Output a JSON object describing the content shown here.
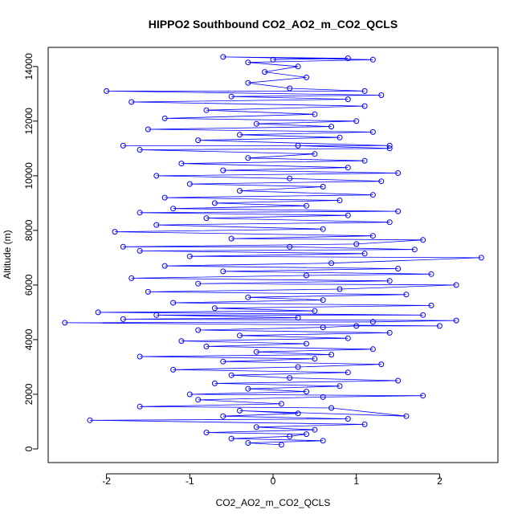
{
  "chart_data": {
    "type": "scatter",
    "title": "HIPPO2 Southbound CO2_AO2_m_CO2_QCLS",
    "xlabel": "CO2_AO2_m_CO2_QCLS",
    "ylabel": "Altitude (m)",
    "xlim": [
      -2.7,
      2.7
    ],
    "ylim": [
      -500,
      14700
    ],
    "x_ticks": [
      -2,
      -1,
      0,
      1,
      2
    ],
    "y_ticks": [
      0,
      2000,
      4000,
      6000,
      8000,
      10000,
      12000,
      14000
    ],
    "x_tick_labels": [
      "-2",
      "-1",
      "0",
      "1",
      "2"
    ],
    "y_tick_labels": [
      "0",
      "2000",
      "4000",
      "6000",
      "8000",
      "10000",
      "12000",
      "14000"
    ],
    "series": [
      {
        "color": "#0000ff",
        "marker": "open-circle",
        "connected": true,
        "points": [
          [
            0.1,
            150
          ],
          [
            -0.3,
            220
          ],
          [
            0.6,
            300
          ],
          [
            -0.5,
            380
          ],
          [
            0.2,
            460
          ],
          [
            0.4,
            540
          ],
          [
            -0.8,
            600
          ],
          [
            0.5,
            700
          ],
          [
            -0.2,
            800
          ],
          [
            1.1,
            900
          ],
          [
            -2.2,
            1050
          ],
          [
            0.9,
            1100
          ],
          [
            -0.6,
            1200
          ],
          [
            0.3,
            1300
          ],
          [
            -0.4,
            1400
          ],
          [
            1.6,
            1200
          ],
          [
            0.7,
            1500
          ],
          [
            -1.6,
            1550
          ],
          [
            0.1,
            1650
          ],
          [
            -0.9,
            1800
          ],
          [
            0.6,
            1900
          ],
          [
            1.8,
            1950
          ],
          [
            -1.0,
            2000
          ],
          [
            0.4,
            2100
          ],
          [
            -0.3,
            2200
          ],
          [
            0.8,
            2300
          ],
          [
            -0.7,
            2400
          ],
          [
            1.5,
            2500
          ],
          [
            0.2,
            2600
          ],
          [
            -0.5,
            2700
          ],
          [
            0.9,
            2800
          ],
          [
            -1.2,
            2900
          ],
          [
            0.3,
            3000
          ],
          [
            1.3,
            3100
          ],
          [
            -0.6,
            3200
          ],
          [
            0.5,
            3300
          ],
          [
            -1.6,
            3380
          ],
          [
            0.7,
            3450
          ],
          [
            -0.2,
            3550
          ],
          [
            1.2,
            3650
          ],
          [
            -0.8,
            3750
          ],
          [
            0.4,
            3850
          ],
          [
            -1.1,
            3950
          ],
          [
            0.9,
            4050
          ],
          [
            -0.4,
            4150
          ],
          [
            1.4,
            4250
          ],
          [
            -0.9,
            4350
          ],
          [
            0.6,
            4450
          ],
          [
            1.0,
            4500
          ],
          [
            2.0,
            4500
          ],
          [
            -2.5,
            4620
          ],
          [
            1.2,
            4650
          ],
          [
            2.2,
            4700
          ],
          [
            -1.8,
            4750
          ],
          [
            0.3,
            4800
          ],
          [
            -1.4,
            4900
          ],
          [
            1.8,
            4900
          ],
          [
            -2.1,
            5000
          ],
          [
            0.5,
            5050
          ],
          [
            -0.7,
            5150
          ],
          [
            1.9,
            5250
          ],
          [
            -1.2,
            5350
          ],
          [
            0.6,
            5450
          ],
          [
            -0.3,
            5550
          ],
          [
            1.6,
            5650
          ],
          [
            -1.5,
            5750
          ],
          [
            0.8,
            5850
          ],
          [
            2.2,
            6000
          ],
          [
            -0.9,
            6050
          ],
          [
            1.4,
            6150
          ],
          [
            -1.7,
            6250
          ],
          [
            0.4,
            6350
          ],
          [
            1.9,
            6400
          ],
          [
            -0.6,
            6500
          ],
          [
            1.5,
            6600
          ],
          [
            -1.3,
            6700
          ],
          [
            0.7,
            6800
          ],
          [
            2.5,
            7000
          ],
          [
            -1.0,
            7050
          ],
          [
            1.1,
            7150
          ],
          [
            -1.6,
            7250
          ],
          [
            1.7,
            7300
          ],
          [
            0.2,
            7400
          ],
          [
            -1.8,
            7400
          ],
          [
            1.0,
            7500
          ],
          [
            1.8,
            7650
          ],
          [
            -0.5,
            7700
          ],
          [
            1.2,
            7800
          ],
          [
            -1.9,
            7950
          ],
          [
            0.6,
            8050
          ],
          [
            -1.4,
            8200
          ],
          [
            1.4,
            8300
          ],
          [
            -0.8,
            8450
          ],
          [
            0.9,
            8550
          ],
          [
            -1.6,
            8650
          ],
          [
            1.5,
            8700
          ],
          [
            -1.2,
            8800
          ],
          [
            0.4,
            8900
          ],
          [
            -0.7,
            9000
          ],
          [
            0.8,
            9100
          ],
          [
            -1.3,
            9200
          ],
          [
            1.2,
            9300
          ],
          [
            -0.4,
            9450
          ],
          [
            0.6,
            9600
          ],
          [
            -1.0,
            9700
          ],
          [
            1.3,
            9800
          ],
          [
            0.2,
            9900
          ],
          [
            -1.4,
            10000
          ],
          [
            1.5,
            10100
          ],
          [
            -0.6,
            10200
          ],
          [
            0.9,
            10300
          ],
          [
            -1.1,
            10450
          ],
          [
            1.1,
            10550
          ],
          [
            -0.3,
            10650
          ],
          [
            0.5,
            10800
          ],
          [
            -1.6,
            10950
          ],
          [
            1.4,
            11000
          ],
          [
            0.3,
            11100
          ],
          [
            -1.8,
            11100
          ],
          [
            1.4,
            11100
          ],
          [
            -0.9,
            11300
          ],
          [
            0.8,
            11400
          ],
          [
            -0.4,
            11500
          ],
          [
            1.2,
            11600
          ],
          [
            -1.5,
            11700
          ],
          [
            0.7,
            11800
          ],
          [
            -0.2,
            11900
          ],
          [
            1.0,
            12000
          ],
          [
            -1.3,
            12100
          ],
          [
            0.5,
            12250
          ],
          [
            -0.8,
            12400
          ],
          [
            1.1,
            12550
          ],
          [
            -1.7,
            12700
          ],
          [
            0.9,
            12800
          ],
          [
            -0.5,
            12900
          ],
          [
            1.3,
            12950
          ],
          [
            -2.0,
            13100
          ],
          [
            1.1,
            13100
          ],
          [
            0.2,
            13200
          ],
          [
            -0.3,
            13400
          ],
          [
            0.4,
            13600
          ],
          [
            -0.1,
            13800
          ],
          [
            0.3,
            14000
          ],
          [
            -0.3,
            14150
          ],
          [
            1.2,
            14250
          ],
          [
            -0.6,
            14350
          ],
          [
            0.9,
            14300
          ],
          [
            0.0,
            14250
          ]
        ]
      }
    ]
  }
}
